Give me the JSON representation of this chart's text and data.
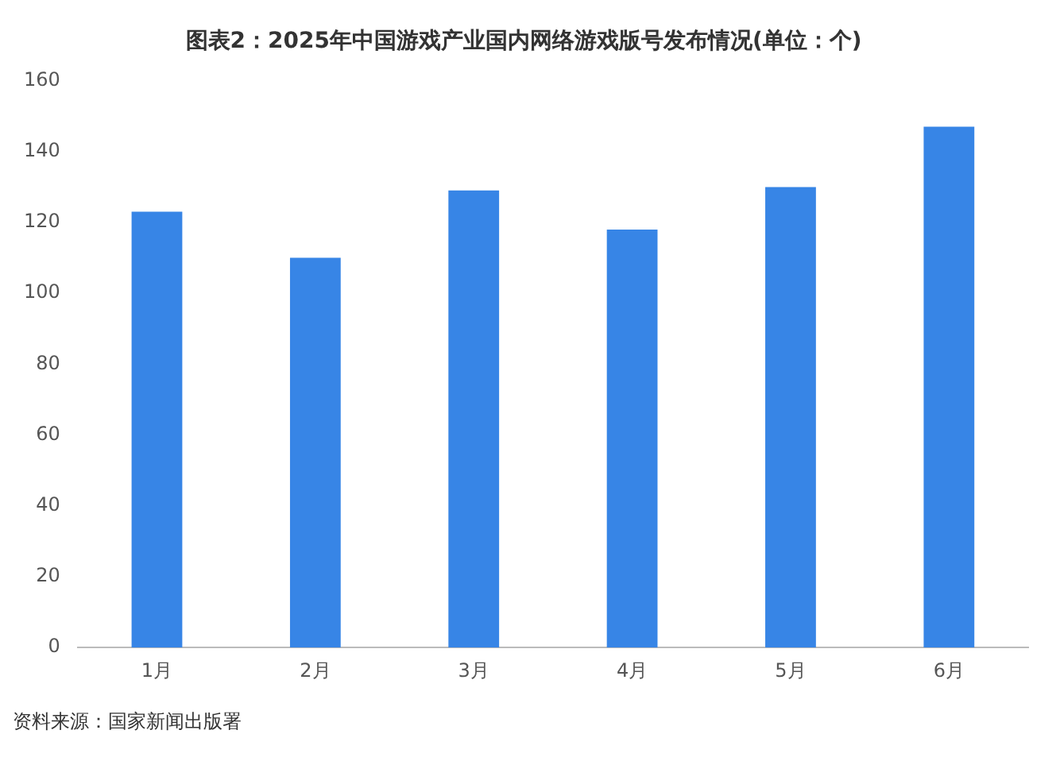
{
  "chart_data": {
    "type": "bar",
    "title": "图表2：2025年中国游戏产业国内网络游戏版号发布情况(单位：个)",
    "categories": [
      "1月",
      "2月",
      "3月",
      "4月",
      "5月",
      "6月"
    ],
    "values": [
      123,
      110,
      129,
      118,
      130,
      147
    ],
    "color": "#3785e6",
    "ylim": [
      0,
      160
    ],
    "yticks": [
      0,
      20,
      40,
      60,
      80,
      100,
      120,
      140,
      160
    ],
    "grid": false,
    "annotations": [
      "资料来源：国家新闻出版署"
    ]
  }
}
